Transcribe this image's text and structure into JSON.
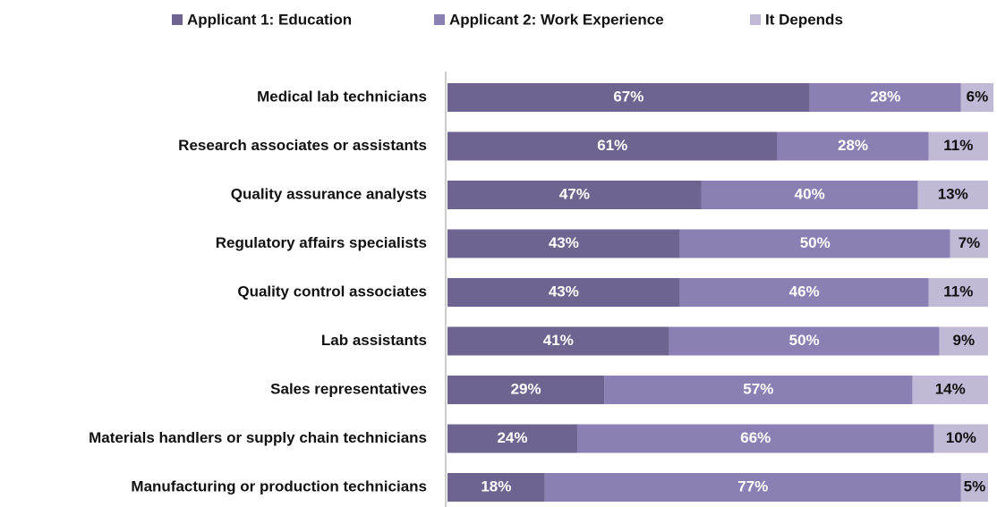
{
  "chart_data": {
    "type": "stacked-bar-horizontal",
    "categories": [
      "Medical lab technicians",
      "Research associates or assistants",
      "Quality assurance analysts",
      "Regulatory affairs specialists",
      "Quality control associates",
      "Lab assistants",
      "Sales representatives",
      "Materials handlers or supply chain technicians",
      "Manufacturing or production technicians"
    ],
    "series": [
      {
        "name": "Applicant 1: Education",
        "color": "#6e6490",
        "values": [
          67,
          61,
          47,
          43,
          43,
          41,
          29,
          24,
          18
        ],
        "value_labels": [
          "67%",
          "61%",
          "47%",
          "43%",
          "43%",
          "41%",
          "29%",
          "24%",
          "18%"
        ]
      },
      {
        "name": "Applicant 2: Work Experience",
        "color": "#8b80b4",
        "values": [
          28,
          28,
          40,
          50,
          46,
          50,
          57,
          66,
          77
        ],
        "value_labels": [
          "28%",
          "28%",
          "40%",
          "50%",
          "46%",
          "50%",
          "57%",
          "66%",
          "77%"
        ]
      },
      {
        "name": "It Depends",
        "color": "#c0bad6",
        "values": [
          6,
          11,
          13,
          7,
          11,
          9,
          14,
          10,
          5
        ],
        "value_labels": [
          "6%",
          "11%",
          "13%",
          "7%",
          "11%",
          "9%",
          "14%",
          "10%",
          "5%"
        ]
      }
    ],
    "xlim": [
      0,
      100
    ],
    "legend": "top"
  }
}
